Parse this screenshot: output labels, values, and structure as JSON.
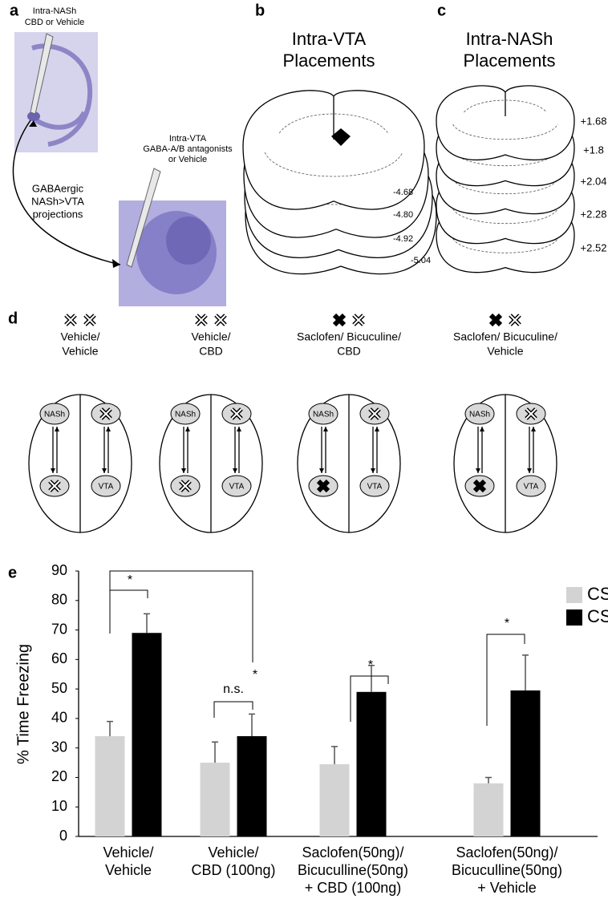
{
  "panel_labels": [
    "a",
    "b",
    "c",
    "d",
    "e"
  ],
  "panel_a": {
    "injection_1": [
      "Intra-NASh",
      "CBD or Vehicle"
    ],
    "injection_2": [
      "Intra-VTA",
      "GABA-A/B antagonists",
      "or Vehicle"
    ],
    "pathway": [
      "GABAergic",
      "NASh>VTA",
      "projections"
    ]
  },
  "panel_b": {
    "title": [
      "Intra-VTA",
      "Placements"
    ],
    "levels": [
      "-4.68",
      "-4.80",
      "-4.92",
      "-5.04"
    ]
  },
  "panel_c": {
    "title": [
      "Intra-NASh",
      "Placements"
    ],
    "levels": [
      "+1.68",
      "+1.8",
      "+2.04",
      "+2.28",
      "+2.52"
    ]
  },
  "panel_d": {
    "groups": [
      {
        "title": [
          "Vehicle/",
          "Vehicle"
        ],
        "nodes": [
          "NASh",
          "VTA"
        ]
      },
      {
        "title": [
          "Vehicle/",
          "CBD"
        ],
        "nodes": [
          "NASh",
          "VTA"
        ]
      },
      {
        "title": [
          "Saclofen/ Bicuculine/",
          "CBD"
        ],
        "nodes": [
          "NASh",
          "VTA"
        ]
      },
      {
        "title": [
          "Saclofen/ Bicuculine/",
          "Vehicle"
        ],
        "nodes": [
          "NASh",
          "VTA"
        ]
      }
    ]
  },
  "chart_data": {
    "type": "bar",
    "y_label": "% Time Freezing",
    "categories": [
      "Vehicle/\nVehicle",
      "Vehicle/\nCBD (100ng)",
      "Saclofen(50ng)/\nBicuculline(50ng)\n+ CBD (100ng)",
      "Saclofen(50ng)/\nBicuculline(50ng)\n+ Vehicle"
    ],
    "series": [
      {
        "name": "CS-",
        "color": "#d3d3d3",
        "values": [
          34,
          25,
          24.5,
          18
        ],
        "errors": [
          5,
          7,
          6,
          2
        ]
      },
      {
        "name": "CS+",
        "color": "#000000",
        "values": [
          69,
          34,
          49,
          49.5
        ],
        "errors": [
          6.5,
          7.5,
          9,
          12
        ]
      }
    ],
    "ylim": [
      0,
      90
    ],
    "yticks": [
      0,
      10,
      20,
      30,
      40,
      50,
      60,
      70,
      80,
      90
    ],
    "legend": "top-right",
    "annotations": [
      "*",
      "*",
      "n.s.",
      "*",
      "*"
    ]
  }
}
